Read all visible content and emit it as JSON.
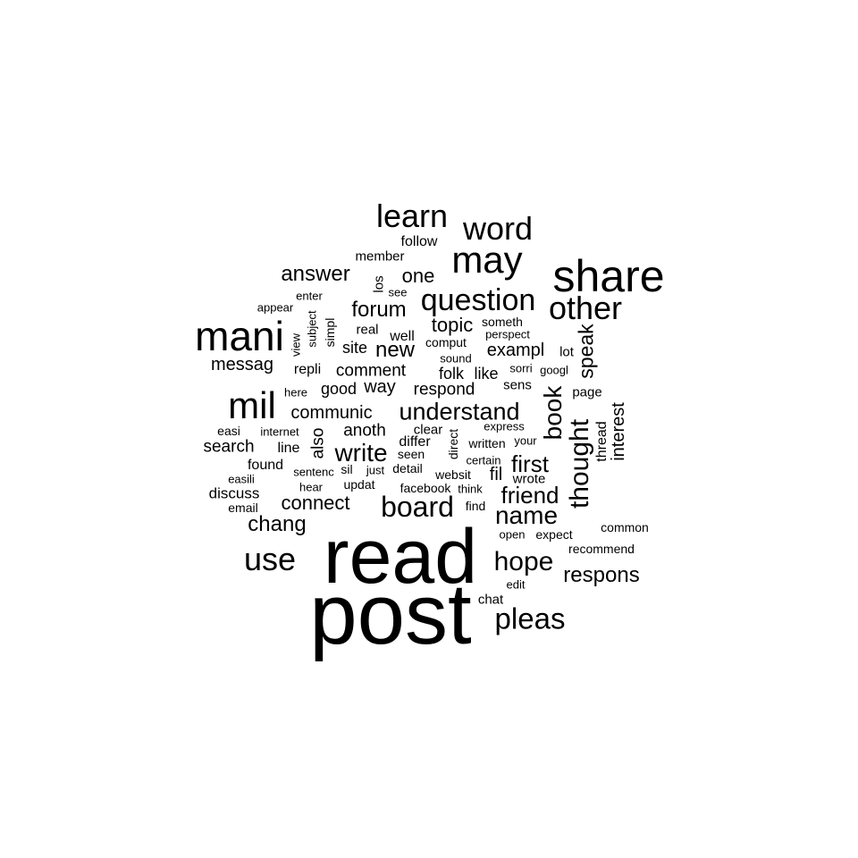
{
  "words": [
    "read",
    "post",
    "share",
    "mani",
    "may",
    "question",
    "word",
    "learn",
    "other",
    "mil",
    "board",
    "use",
    "understand",
    "name",
    "thought",
    "book",
    "pleas",
    "hope",
    "first",
    "friend",
    "write",
    "answer",
    "forum",
    "chang",
    "respons",
    "speak",
    "communic",
    "connect",
    "messag",
    "topic",
    "one",
    "new",
    "exampl",
    "comment",
    "respond",
    "search",
    "interest",
    "anoth",
    "also",
    "way",
    "good",
    "fil",
    "discuss",
    "site",
    "thread",
    "like",
    "folk",
    "follow",
    "member",
    "repli",
    "found",
    "well",
    "real",
    "line",
    "sens",
    "differ",
    "page",
    "lot",
    "los",
    "see",
    "enter",
    "appear",
    "subject",
    "simpl",
    "view",
    "someth",
    "comput",
    "perspect",
    "sound",
    "sorri",
    "googl",
    "here",
    "easi",
    "internet",
    "clear",
    "express",
    "direct",
    "written",
    "your",
    "seen",
    "detail",
    "sentenc",
    "sil",
    "just",
    "websit",
    "certain",
    "wrote",
    "easili",
    "hear",
    "updat",
    "facebook",
    "think",
    "email",
    "find",
    "common",
    "open",
    "expect",
    "recommend",
    "edit",
    "chat"
  ]
}
